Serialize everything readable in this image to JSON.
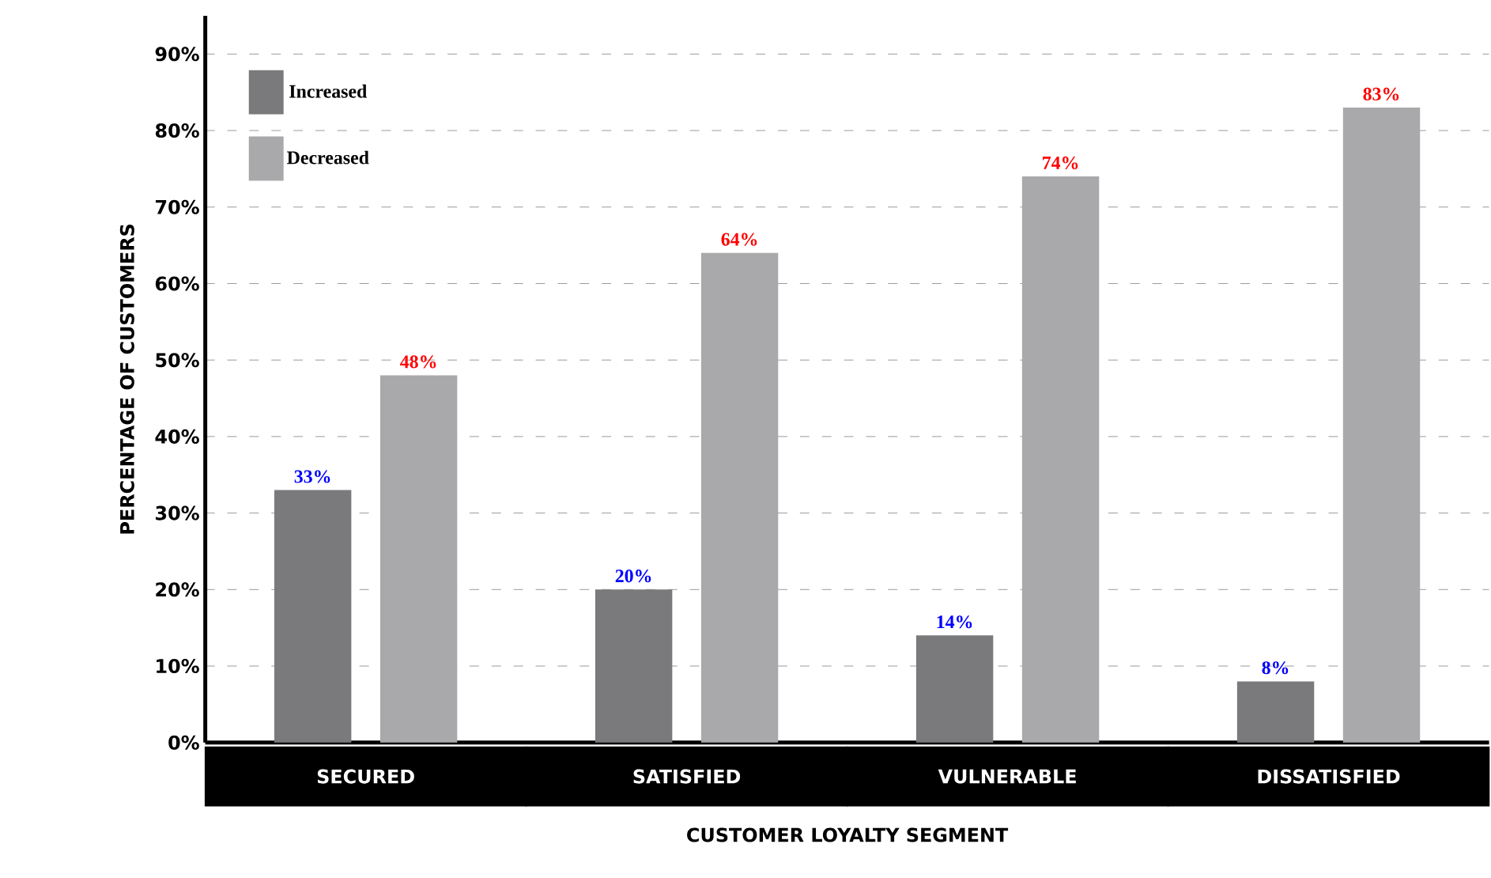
{
  "chart_data": {
    "type": "bar",
    "xlabel": "CUSTOMER LOYALTY SEGMENT",
    "ylabel": "PERCENTAGE OF CUSTOMERS",
    "categories": [
      "SECURED",
      "SATISFIED",
      "VULNERABLE",
      "DISSATISFIED"
    ],
    "series": [
      {
        "name": "Increased",
        "color": "#7a7a7c",
        "values": [
          33,
          20,
          14,
          8
        ],
        "value_labels": [
          "33%",
          "20%",
          "14%",
          "8%"
        ]
      },
      {
        "name": "Decreased",
        "color": "#a9a9ab",
        "values": [
          48,
          64,
          74,
          83
        ],
        "value_labels": [
          "48%",
          "64%",
          "74%",
          "83%"
        ]
      }
    ],
    "ylim": [
      0,
      95
    ],
    "yticks": [
      {
        "value": 0,
        "label": "0%"
      },
      {
        "value": 10,
        "label": "10%"
      },
      {
        "value": 20,
        "label": "20%"
      },
      {
        "value": 30,
        "label": "30%"
      },
      {
        "value": 40,
        "label": "40%"
      },
      {
        "value": 50,
        "label": "50%"
      },
      {
        "value": 60,
        "label": "60%"
      },
      {
        "value": 70,
        "label": "70%"
      },
      {
        "value": 80,
        "label": "80%"
      },
      {
        "value": 90,
        "label": "90%"
      }
    ],
    "grid": "y",
    "legend": "top left"
  }
}
